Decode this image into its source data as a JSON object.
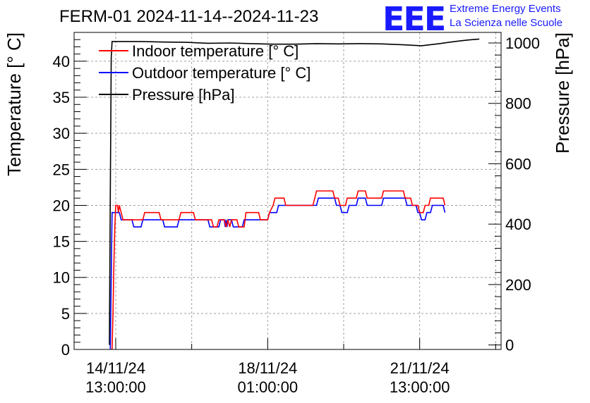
{
  "header": {
    "title": "FERM-01 2024-11-14--2024-11-23",
    "logo_text": "EEE",
    "logo_line1": "Extreme Energy Events",
    "logo_line2": "La Scienza nelle Scuole"
  },
  "colors": {
    "indoor": "#ff0000",
    "outdoor": "#0000ff",
    "pressure": "#000000",
    "logo": "#1a1aff"
  },
  "chart_data": {
    "type": "line",
    "x_axis_type": "datetime",
    "xlim": [
      "2024-11-13T14:00:00",
      "2024-11-23T10:00:00"
    ],
    "x_ticks": [
      {
        "date": "2024-11-14T13:00:00",
        "line1": "14/11/24",
        "line2": "13:00:00"
      },
      {
        "date": "2024-11-18T01:00:00",
        "line1": "18/11/24",
        "line2": "01:00:00"
      },
      {
        "date": "2024-11-21T13:00:00",
        "line1": "21/11/24",
        "line2": "13:00:00"
      }
    ],
    "ylabel": "Temperature [° C]",
    "ylim": [
      0,
      44
    ],
    "y_ticks": [
      0,
      5,
      10,
      15,
      20,
      25,
      30,
      35,
      40
    ],
    "y2label": "Pressure [hPa]",
    "y2lim": [
      -15,
      1035
    ],
    "y2_ticks": [
      0,
      200,
      400,
      600,
      800,
      1000
    ],
    "grid": true,
    "legend_position": "top-left",
    "series": [
      {
        "name": "Indoor temperature [° C]",
        "axis": "left",
        "color": "#ff0000",
        "points": [
          [
            "2024-11-14T11:00:00",
            0
          ],
          [
            "2024-11-14T11:30:00",
            5
          ],
          [
            "2024-11-14T12:00:00",
            12
          ],
          [
            "2024-11-14T12:30:00",
            17
          ],
          [
            "2024-11-14T13:00:00",
            20
          ],
          [
            "2024-11-14T14:00:00",
            20
          ],
          [
            "2024-11-14T14:30:00",
            19
          ],
          [
            "2024-11-14T15:00:00",
            20
          ],
          [
            "2024-11-14T16:00:00",
            19
          ],
          [
            "2024-11-14T17:00:00",
            18
          ],
          [
            "2024-11-15T04:00:00",
            18
          ],
          [
            "2024-11-15T05:00:00",
            19
          ],
          [
            "2024-11-15T13:00:00",
            19
          ],
          [
            "2024-11-15T14:00:00",
            18
          ],
          [
            "2024-11-16T00:00:00",
            18
          ],
          [
            "2024-11-16T01:00:00",
            19
          ],
          [
            "2024-11-16T08:00:00",
            19
          ],
          [
            "2024-11-16T09:00:00",
            18
          ],
          [
            "2024-11-16T18:00:00",
            18
          ],
          [
            "2024-11-16T19:00:00",
            17
          ],
          [
            "2024-11-16T21:00:00",
            17
          ],
          [
            "2024-11-16T22:00:00",
            18
          ],
          [
            "2024-11-17T01:00:00",
            18
          ],
          [
            "2024-11-17T02:00:00",
            17
          ],
          [
            "2024-11-17T03:00:00",
            18
          ],
          [
            "2024-11-17T04:00:00",
            17
          ],
          [
            "2024-11-17T05:00:00",
            18
          ],
          [
            "2024-11-17T08:00:00",
            18
          ],
          [
            "2024-11-17T09:00:00",
            17
          ],
          [
            "2024-11-17T12:00:00",
            17
          ],
          [
            "2024-11-17T13:00:00",
            19
          ],
          [
            "2024-11-17T20:00:00",
            19
          ],
          [
            "2024-11-17T21:00:00",
            18
          ],
          [
            "2024-11-18T01:00:00",
            18
          ],
          [
            "2024-11-18T02:00:00",
            19
          ],
          [
            "2024-11-18T04:00:00",
            20
          ],
          [
            "2024-11-18T05:00:00",
            21
          ],
          [
            "2024-11-18T10:00:00",
            21
          ],
          [
            "2024-11-18T11:00:00",
            20
          ],
          [
            "2024-11-19T02:00:00",
            20
          ],
          [
            "2024-11-19T03:00:00",
            21
          ],
          [
            "2024-11-19T04:00:00",
            22
          ],
          [
            "2024-11-19T13:00:00",
            22
          ],
          [
            "2024-11-19T14:00:00",
            21
          ],
          [
            "2024-11-19T16:00:00",
            21
          ],
          [
            "2024-11-19T17:00:00",
            20
          ],
          [
            "2024-11-19T20:00:00",
            20
          ],
          [
            "2024-11-19T21:00:00",
            21
          ],
          [
            "2024-11-20T02:00:00",
            21
          ],
          [
            "2024-11-20T03:00:00",
            22
          ],
          [
            "2024-11-20T07:00:00",
            22
          ],
          [
            "2024-11-20T08:00:00",
            21
          ],
          [
            "2024-11-20T16:00:00",
            21
          ],
          [
            "2024-11-20T17:00:00",
            22
          ],
          [
            "2024-11-21T04:00:00",
            22
          ],
          [
            "2024-11-21T05:00:00",
            21
          ],
          [
            "2024-11-21T08:00:00",
            21
          ],
          [
            "2024-11-21T09:00:00",
            20
          ],
          [
            "2024-11-21T12:00:00",
            20
          ],
          [
            "2024-11-21T13:00:00",
            19
          ],
          [
            "2024-11-21T15:00:00",
            19
          ],
          [
            "2024-11-21T16:00:00",
            20
          ],
          [
            "2024-11-21T18:00:00",
            20
          ],
          [
            "2024-11-21T19:00:00",
            21
          ],
          [
            "2024-11-22T02:00:00",
            21
          ],
          [
            "2024-11-22T03:00:00",
            20
          ]
        ]
      },
      {
        "name": "Outdoor temperature [° C]",
        "axis": "left",
        "color": "#0000ff",
        "points": [
          [
            "2024-11-14T10:00:00",
            0
          ],
          [
            "2024-11-14T10:30:00",
            10
          ],
          [
            "2024-11-14T11:00:00",
            19
          ],
          [
            "2024-11-14T15:00:00",
            19
          ],
          [
            "2024-11-14T16:00:00",
            18
          ],
          [
            "2024-11-14T22:00:00",
            18
          ],
          [
            "2024-11-14T23:00:00",
            17
          ],
          [
            "2024-11-15T03:00:00",
            17
          ],
          [
            "2024-11-15T04:00:00",
            18
          ],
          [
            "2024-11-15T15:00:00",
            18
          ],
          [
            "2024-11-15T16:00:00",
            17
          ],
          [
            "2024-11-15T23:00:00",
            17
          ],
          [
            "2024-11-16T00:00:00",
            18
          ],
          [
            "2024-11-16T16:00:00",
            18
          ],
          [
            "2024-11-16T17:00:00",
            17
          ],
          [
            "2024-11-16T22:00:00",
            17
          ],
          [
            "2024-11-16T23:00:00",
            18
          ],
          [
            "2024-11-17T01:00:00",
            18
          ],
          [
            "2024-11-17T01:30:00",
            17
          ],
          [
            "2024-11-17T02:00:00",
            18
          ],
          [
            "2024-11-17T02:30:00",
            17
          ],
          [
            "2024-11-17T03:00:00",
            18
          ],
          [
            "2024-11-17T05:00:00",
            18
          ],
          [
            "2024-11-17T06:00:00",
            17
          ],
          [
            "2024-11-17T11:00:00",
            17
          ],
          [
            "2024-11-17T12:00:00",
            18
          ],
          [
            "2024-11-18T01:00:00",
            18
          ],
          [
            "2024-11-18T02:00:00",
            19
          ],
          [
            "2024-11-18T06:00:00",
            19
          ],
          [
            "2024-11-18T07:00:00",
            20
          ],
          [
            "2024-11-19T04:00:00",
            20
          ],
          [
            "2024-11-19T05:00:00",
            21
          ],
          [
            "2024-11-19T14:00:00",
            21
          ],
          [
            "2024-11-19T15:00:00",
            20
          ],
          [
            "2024-11-19T17:00:00",
            20
          ],
          [
            "2024-11-19T18:00:00",
            19
          ],
          [
            "2024-11-19T21:00:00",
            19
          ],
          [
            "2024-11-19T22:00:00",
            20
          ],
          [
            "2024-11-20T02:00:00",
            20
          ],
          [
            "2024-11-20T03:00:00",
            21
          ],
          [
            "2024-11-20T07:00:00",
            21
          ],
          [
            "2024-11-20T08:00:00",
            20
          ],
          [
            "2024-11-20T16:00:00",
            20
          ],
          [
            "2024-11-20T17:00:00",
            21
          ],
          [
            "2024-11-21T05:00:00",
            21
          ],
          [
            "2024-11-21T06:00:00",
            20
          ],
          [
            "2024-11-21T11:00:00",
            20
          ],
          [
            "2024-11-21T12:00:00",
            19
          ],
          [
            "2024-11-21T13:00:00",
            19
          ],
          [
            "2024-11-21T14:00:00",
            18
          ],
          [
            "2024-11-21T16:00:00",
            18
          ],
          [
            "2024-11-21T17:00:00",
            19
          ],
          [
            "2024-11-21T19:00:00",
            19
          ],
          [
            "2024-11-21T20:00:00",
            20
          ],
          [
            "2024-11-22T02:00:00",
            20
          ],
          [
            "2024-11-22T03:00:00",
            19
          ]
        ]
      },
      {
        "name": "Pressure [hPa]",
        "axis": "right",
        "color": "#000000",
        "points": [
          [
            "2024-11-14T09:30:00",
            0
          ],
          [
            "2024-11-14T10:00:00",
            500
          ],
          [
            "2024-11-14T10:30:00",
            950
          ],
          [
            "2024-11-14T11:00:00",
            1005
          ],
          [
            "2024-11-15T03:00:00",
            1005
          ],
          [
            "2024-11-15T16:00:00",
            1003
          ],
          [
            "2024-11-16T04:00:00",
            1002
          ],
          [
            "2024-11-16T16:00:00",
            999
          ],
          [
            "2024-11-17T04:00:00",
            1000
          ],
          [
            "2024-11-17T16:00:00",
            998
          ],
          [
            "2024-11-18T04:00:00",
            996
          ],
          [
            "2024-11-18T16:00:00",
            996
          ],
          [
            "2024-11-19T04:00:00",
            998
          ],
          [
            "2024-11-19T16:00:00",
            997
          ],
          [
            "2024-11-20T04:00:00",
            998
          ],
          [
            "2024-11-20T16:00:00",
            997
          ],
          [
            "2024-11-21T04:00:00",
            994
          ],
          [
            "2024-11-21T14:00:00",
            991
          ],
          [
            "2024-11-22T00:00:00",
            998
          ],
          [
            "2024-11-22T10:00:00",
            1006
          ],
          [
            "2024-11-22T16:00:00",
            1010
          ],
          [
            "2024-11-22T22:00:00",
            1013
          ]
        ]
      }
    ]
  }
}
